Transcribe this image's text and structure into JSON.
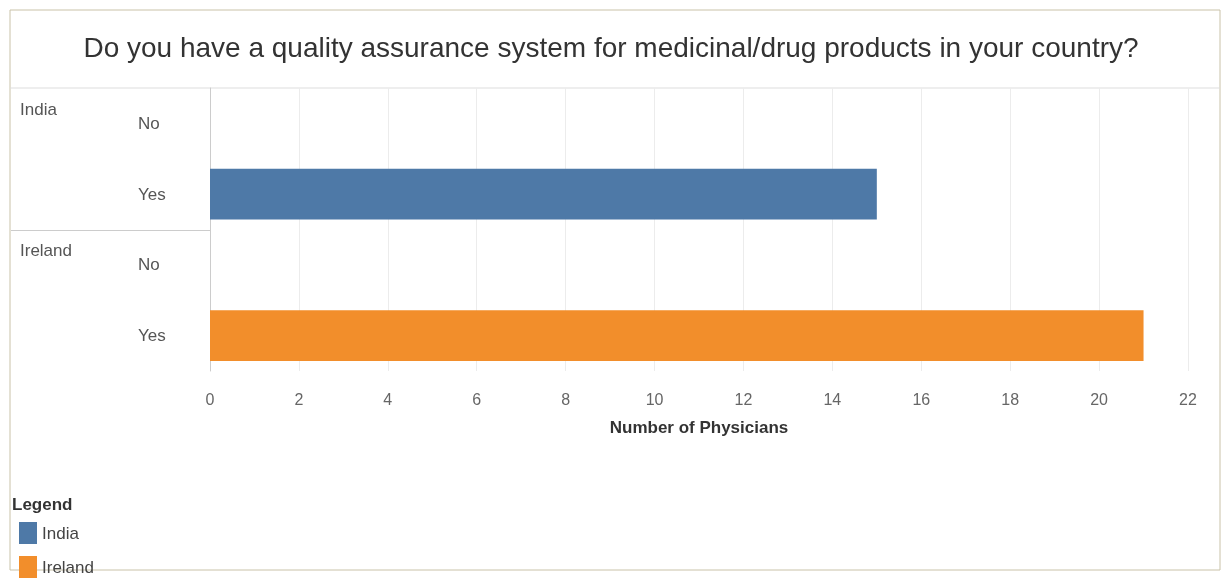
{
  "chart_data": {
    "type": "bar",
    "orientation": "horizontal",
    "stacked": true,
    "title": "Do you have a quality assurance system for medicinal/drug products in your country?",
    "xlabel": "Number of Physicians",
    "legend_title": "Legend",
    "legend": "bottom left",
    "grid": "x",
    "categories": [
      "No",
      "Yes",
      "No",
      "Yes"
    ],
    "series": [
      {
        "name": "India",
        "color": "#4e79a7",
        "values": [
          null,
          15,
          null,
          null
        ]
      },
      {
        "name": "Ireland",
        "color": "#f28e2b",
        "values": [
          null,
          null,
          null,
          21
        ]
      }
    ],
    "xlim": [
      0,
      22
    ],
    "xticks": [
      0,
      2,
      4,
      6,
      8,
      10,
      12,
      14,
      16,
      18,
      20,
      22
    ]
  }
}
